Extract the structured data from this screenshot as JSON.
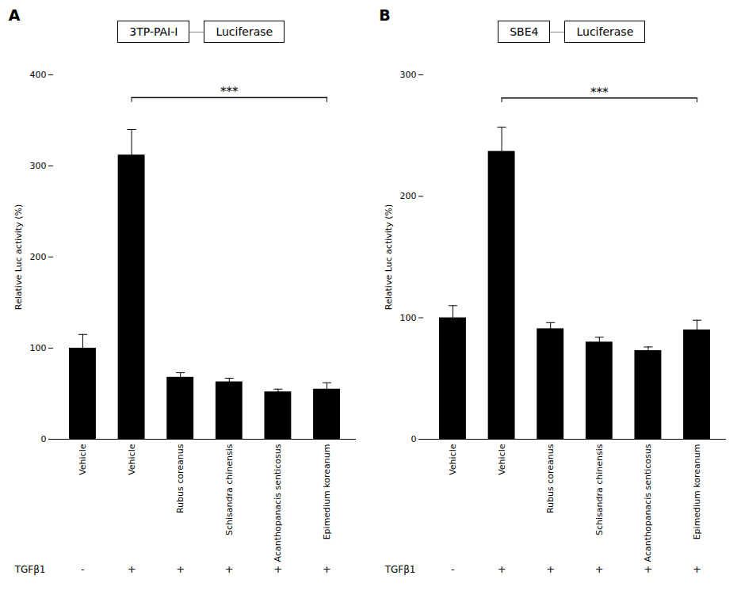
{
  "chart_data": [
    {
      "type": "bar",
      "title": "A",
      "construct": [
        "3TP-PAI-I",
        "Luciferase"
      ],
      "ylabel": "Relative Luc activity (%)",
      "ylim": [
        0,
        400
      ],
      "yticks": [
        0,
        100,
        200,
        300,
        400
      ],
      "categories": [
        "Vehicle",
        "Vehicle",
        "Rubus coreanus",
        "Schisandra chinensis",
        "Acanthopanacis senticosus",
        "Epimedium koreanum"
      ],
      "row_label": "TGFβ1",
      "row_values": [
        "-",
        "+",
        "+",
        "+",
        "+",
        "+"
      ],
      "values": [
        100,
        312,
        68,
        63,
        52,
        55
      ],
      "errors": [
        15,
        28,
        5,
        4,
        3,
        7
      ],
      "color": "#000000",
      "annotations": [
        {
          "text": "***",
          "from": 1,
          "to": 5,
          "y": 375
        }
      ]
    },
    {
      "type": "bar",
      "title": "B",
      "construct": [
        "SBE4",
        "Luciferase"
      ],
      "ylabel": "Relative Luc activity (%)",
      "ylim": [
        0,
        300
      ],
      "yticks": [
        0,
        100,
        200,
        300
      ],
      "categories": [
        "Vehicle",
        "Vehicle",
        "Rubus coreanus",
        "Schisandra chinensis",
        "Acanthopanacis senticosus",
        "Epimedium koreanum"
      ],
      "row_label": "TGFβ1",
      "row_values": [
        "-",
        "+",
        "+",
        "+",
        "+",
        "+"
      ],
      "values": [
        100,
        237,
        91,
        80,
        73,
        90
      ],
      "errors": [
        10,
        20,
        5,
        4,
        3,
        8
      ],
      "color": "#000000",
      "annotations": [
        {
          "text": "***",
          "from": 1,
          "to": 5,
          "y": 281
        }
      ]
    }
  ]
}
